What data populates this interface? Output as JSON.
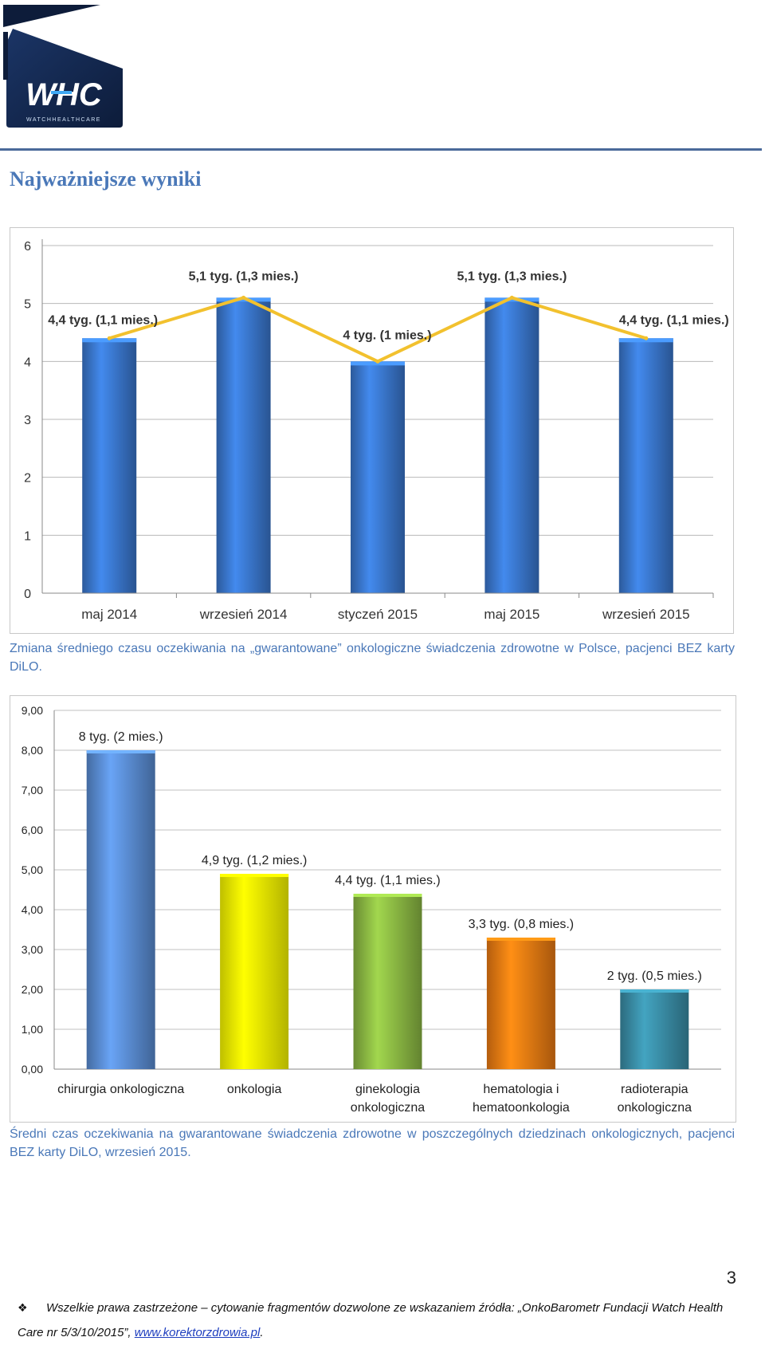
{
  "logo": {
    "letters": "WHC",
    "tagline": "WATCHHEALTHCARE",
    "bg_color": "#14284f",
    "accent_color": "#3fa9f5"
  },
  "heading": "Najważniejsze wyniki",
  "chart1": {
    "caption": "Zmiana średniego czasu oczekiwania na „gwarantowane” onkologiczne świadczenia zdrowotne w Polsce, pacjenci BEZ karty DiLO."
  },
  "chart2": {
    "caption": "Średni czas oczekiwania na gwarantowane świadczenia zdrowotne w poszczególnych dziedzinach onkologicznych, pacjenci BEZ karty DiLO, wrzesień 2015."
  },
  "chart_data": [
    {
      "type": "bar",
      "categories": [
        "maj 2014",
        "wrzesień 2014",
        "styczeń 2015",
        "maj 2015",
        "wrzesień 2015"
      ],
      "series": [
        {
          "values": [
            4.4,
            5.1,
            4.0,
            5.1,
            4.4
          ],
          "color": "#3a78cf"
        },
        {
          "type": "line",
          "values": [
            4.4,
            5.1,
            4.0,
            5.1,
            4.4
          ],
          "color": "#f2c12e"
        }
      ],
      "data_labels": [
        "4,4 tyg. (1,1 mies.)",
        "5,1 tyg. (1,3 mies.)",
        "4 tyg. (1 mies.)",
        "5,1 tyg. (1,3 mies.)",
        "4,4 tyg. (1,1 mies.)"
      ],
      "y_ticks": [
        "0",
        "1",
        "2",
        "3",
        "4",
        "5",
        "6"
      ],
      "ylim": [
        0,
        6
      ],
      "grid": true,
      "legend": "none"
    },
    {
      "type": "bar",
      "categories": [
        "chirurgia onkologiczna",
        "onkologia",
        "ginekologia onkologiczna",
        "hematologia i hematoonkologia",
        "radioterapia onkologiczna"
      ],
      "category_lines": [
        [
          "chirurgia onkologiczna"
        ],
        [
          "onkologia"
        ],
        [
          "ginekologia",
          "onkologiczna"
        ],
        [
          "hematologia i",
          "hematoonkologia"
        ],
        [
          "radioterapia",
          "onkologiczna"
        ]
      ],
      "values": [
        8,
        4.9,
        4.4,
        3.3,
        2
      ],
      "colors": [
        "#5b8fd6",
        "#ffff00",
        "#8dbb44",
        "#f07c12",
        "#3a8fa8"
      ],
      "data_labels": [
        "8 tyg. (2 mies.)",
        "4,9 tyg. (1,2 mies.)",
        "4,4 tyg. (1,1 mies.)",
        "3,3 tyg. (0,8 mies.)",
        "2 tyg. (0,5 mies.)"
      ],
      "y_ticks": [
        "0,00",
        "1,00",
        "2,00",
        "3,00",
        "4,00",
        "5,00",
        "6,00",
        "7,00",
        "8,00",
        "9,00"
      ],
      "ylim": [
        0,
        9
      ],
      "grid": true,
      "legend": "none"
    }
  ],
  "page_number": "3",
  "footer": {
    "text": "Wszelkie prawa zastrzeżone – cytowanie fragmentów dozwolone ze wskazaniem źródła: „OnkoBarometr Fundacji Watch Health Care nr 5/3/10/2015”, ",
    "link": "www.korektorzdrowia.pl",
    "end": "."
  }
}
